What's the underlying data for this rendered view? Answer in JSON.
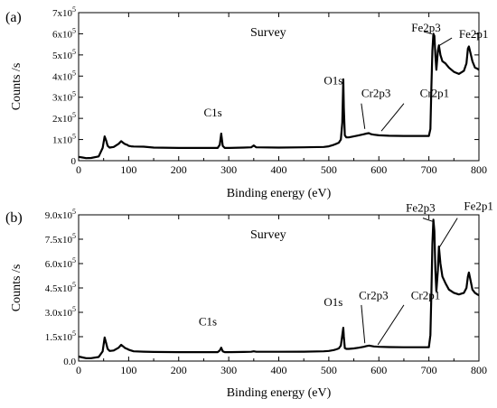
{
  "chart_data": [
    {
      "type": "line",
      "panel_label": "(a)",
      "title": "Survey",
      "xlabel": "Binding energy (eV)",
      "ylabel": "Counts /s",
      "xlim": [
        0,
        800
      ],
      "ylim": [
        0,
        700000
      ],
      "x_ticks": [
        "0",
        "100",
        "200",
        "300",
        "400",
        "500",
        "600",
        "700",
        "800"
      ],
      "y_ticks": [
        {
          "mantissa": "0",
          "exp": ""
        },
        {
          "mantissa": "1x10",
          "exp": "5"
        },
        {
          "mantissa": "2x10",
          "exp": "5"
        },
        {
          "mantissa": "3x10",
          "exp": "5"
        },
        {
          "mantissa": "4x10",
          "exp": "5"
        },
        {
          "mantissa": "5x10",
          "exp": "5"
        },
        {
          "mantissa": "6x10",
          "exp": "5"
        },
        {
          "mantissa": "7x10",
          "exp": "5"
        }
      ],
      "series": [
        {
          "x": [
            0,
            8,
            15,
            25,
            40,
            48,
            52,
            55,
            58,
            62,
            70,
            80,
            85,
            90,
            93,
            97,
            100,
            105,
            110,
            130,
            150,
            200,
            250,
            278,
            282,
            285,
            288,
            292,
            300,
            330,
            345,
            350,
            355,
            400,
            450,
            490,
            500,
            510,
            515,
            520,
            524,
            527,
            529,
            530,
            532,
            535,
            540,
            550,
            560,
            570,
            575,
            580,
            585,
            590,
            600,
            620,
            650,
            680,
            700,
            703,
            705,
            707,
            709,
            711,
            713,
            715,
            718,
            720,
            723,
            727,
            733,
            740,
            750,
            760,
            770,
            775,
            778,
            780,
            783,
            787,
            792,
            797,
            800
          ],
          "y": [
            18000,
            15000,
            12000,
            13000,
            20000,
            60000,
            115000,
            95000,
            70000,
            62000,
            65000,
            80000,
            92000,
            83000,
            78000,
            75000,
            70000,
            68000,
            67000,
            66000,
            62000,
            60000,
            60000,
            60000,
            75000,
            128000,
            70000,
            60000,
            60000,
            62000,
            63000,
            72000,
            63000,
            62000,
            63000,
            65000,
            68000,
            75000,
            80000,
            85000,
            100000,
            180000,
            385000,
            250000,
            120000,
            110000,
            110000,
            115000,
            120000,
            125000,
            128000,
            130000,
            125000,
            123000,
            120000,
            118000,
            117000,
            117000,
            117000,
            150000,
            350000,
            520000,
            600000,
            590000,
            500000,
            430000,
            520000,
            545000,
            500000,
            470000,
            460000,
            440000,
            420000,
            410000,
            425000,
            460000,
            530000,
            540000,
            510000,
            470000,
            440000,
            435000,
            430000
          ]
        }
      ],
      "annotations": [
        {
          "text": "C1s",
          "x": 250,
          "y": 210000
        },
        {
          "text": "O1s",
          "x": 490,
          "y": 360000
        },
        {
          "text": "Cr2p3",
          "x": 565,
          "y": 300000
        },
        {
          "text": "Cr2p1",
          "x": 682,
          "y": 300000
        },
        {
          "text": "Fe2p3",
          "x": 665,
          "y": 610000
        },
        {
          "text": "Fe2p1",
          "x": 760,
          "y": 580000
        }
      ]
    },
    {
      "type": "line",
      "panel_label": "(b)",
      "title": "Survey",
      "xlabel": "Binding energy (eV)",
      "ylabel": "Counts /s",
      "xlim": [
        0,
        800
      ],
      "ylim": [
        0,
        900000
      ],
      "x_ticks": [
        "0",
        "100",
        "200",
        "300",
        "400",
        "500",
        "600",
        "700",
        "800"
      ],
      "y_ticks": [
        {
          "mantissa": "0.0",
          "exp": ""
        },
        {
          "mantissa": "1.5x10",
          "exp": "5"
        },
        {
          "mantissa": "3.0x10",
          "exp": "5"
        },
        {
          "mantissa": "4.5x10",
          "exp": "5"
        },
        {
          "mantissa": "6.0x10",
          "exp": "5"
        },
        {
          "mantissa": "7.5x10",
          "exp": "5"
        },
        {
          "mantissa": "9.0x10",
          "exp": "5"
        }
      ],
      "series": [
        {
          "x": [
            0,
            8,
            15,
            25,
            40,
            48,
            52,
            55,
            58,
            62,
            70,
            80,
            85,
            90,
            93,
            97,
            100,
            105,
            110,
            130,
            150,
            200,
            250,
            278,
            282,
            285,
            288,
            292,
            300,
            330,
            345,
            350,
            355,
            400,
            450,
            490,
            500,
            510,
            515,
            520,
            524,
            527,
            529,
            530,
            532,
            535,
            540,
            550,
            560,
            570,
            575,
            580,
            585,
            590,
            600,
            620,
            650,
            680,
            700,
            703,
            705,
            707,
            709,
            711,
            713,
            715,
            718,
            720,
            723,
            727,
            733,
            740,
            750,
            760,
            770,
            775,
            778,
            780,
            783,
            787,
            792,
            797,
            800
          ],
          "y": [
            28000,
            22000,
            18000,
            18000,
            25000,
            60000,
            145000,
            110000,
            75000,
            62000,
            65000,
            82000,
            100000,
            88000,
            80000,
            75000,
            70000,
            65000,
            60000,
            58000,
            56000,
            55000,
            55000,
            55000,
            65000,
            82000,
            60000,
            55000,
            55000,
            56000,
            57000,
            60000,
            57000,
            57000,
            58000,
            60000,
            62000,
            68000,
            72000,
            78000,
            95000,
            160000,
            205000,
            150000,
            80000,
            75000,
            75000,
            78000,
            82000,
            88000,
            92000,
            95000,
            93000,
            90000,
            88000,
            86000,
            85000,
            85000,
            85000,
            160000,
            420000,
            720000,
            870000,
            800000,
            560000,
            430000,
            560000,
            705000,
            600000,
            520000,
            480000,
            440000,
            420000,
            410000,
            420000,
            450000,
            520000,
            545000,
            500000,
            440000,
            420000,
            410000,
            405000
          ]
        }
      ],
      "annotations": [
        {
          "text": "C1s",
          "x": 240,
          "y": 220000
        },
        {
          "text": "O1s",
          "x": 490,
          "y": 340000
        },
        {
          "text": "Cr2p3",
          "x": 560,
          "y": 380000
        },
        {
          "text": "Cr2p1",
          "x": 664,
          "y": 380000
        },
        {
          "text": "Fe2p3",
          "x": 654,
          "y": 920000
        },
        {
          "text": "Fe2p1",
          "x": 770,
          "y": 930000
        }
      ]
    }
  ]
}
